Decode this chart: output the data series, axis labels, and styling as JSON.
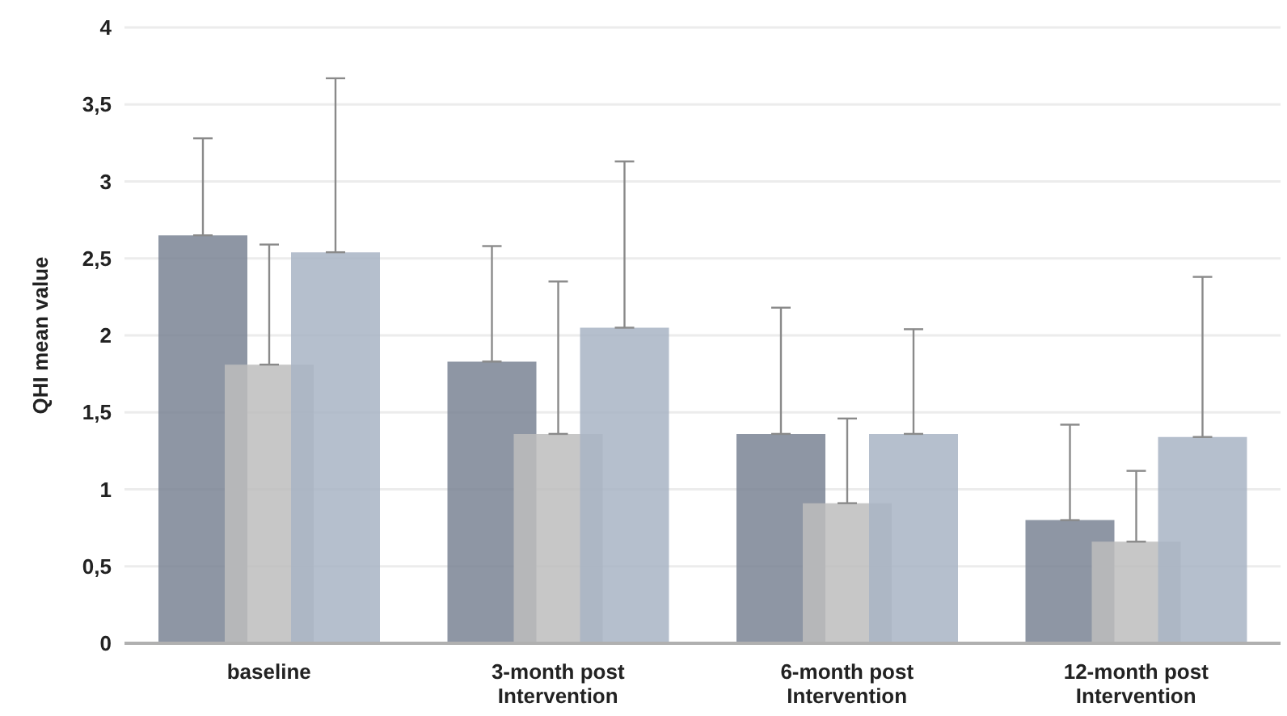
{
  "chart_data": {
    "type": "bar",
    "ylabel": "QHI mean value",
    "categories": [
      "baseline",
      "3-month post Intervention",
      "6-month post Intervention",
      "12-month post Intervention"
    ],
    "series": [
      {
        "color": "#7a8494",
        "values": [
          2.65,
          1.83,
          1.36,
          0.8
        ],
        "errors": [
          [
            2.65,
            3.28
          ],
          [
            1.83,
            2.58
          ],
          [
            1.36,
            2.18
          ],
          [
            0.8,
            1.42
          ]
        ]
      },
      {
        "color": "#bdbdbd",
        "values": [
          1.81,
          1.36,
          0.91,
          0.66
        ],
        "errors": [
          [
            1.81,
            2.59
          ],
          [
            1.36,
            2.35
          ],
          [
            0.91,
            1.46
          ],
          [
            0.66,
            1.12
          ]
        ]
      },
      {
        "color": "#a8b4c4",
        "values": [
          2.54,
          2.05,
          1.36,
          1.34
        ],
        "errors": [
          [
            2.54,
            3.67
          ],
          [
            2.05,
            3.13
          ],
          [
            1.36,
            2.04
          ],
          [
            1.34,
            2.38
          ]
        ]
      }
    ],
    "ylim": [
      0,
      4
    ],
    "yticks": [
      0,
      {
        "value": 0.5,
        "label": "0,5"
      },
      1,
      {
        "value": 1.5,
        "label": "1,5"
      },
      2,
      {
        "value": 2.5,
        "label": "2,5"
      },
      3,
      {
        "value": 3.5,
        "label": "3,5"
      },
      4
    ],
    "grid": "y",
    "legend": false
  }
}
